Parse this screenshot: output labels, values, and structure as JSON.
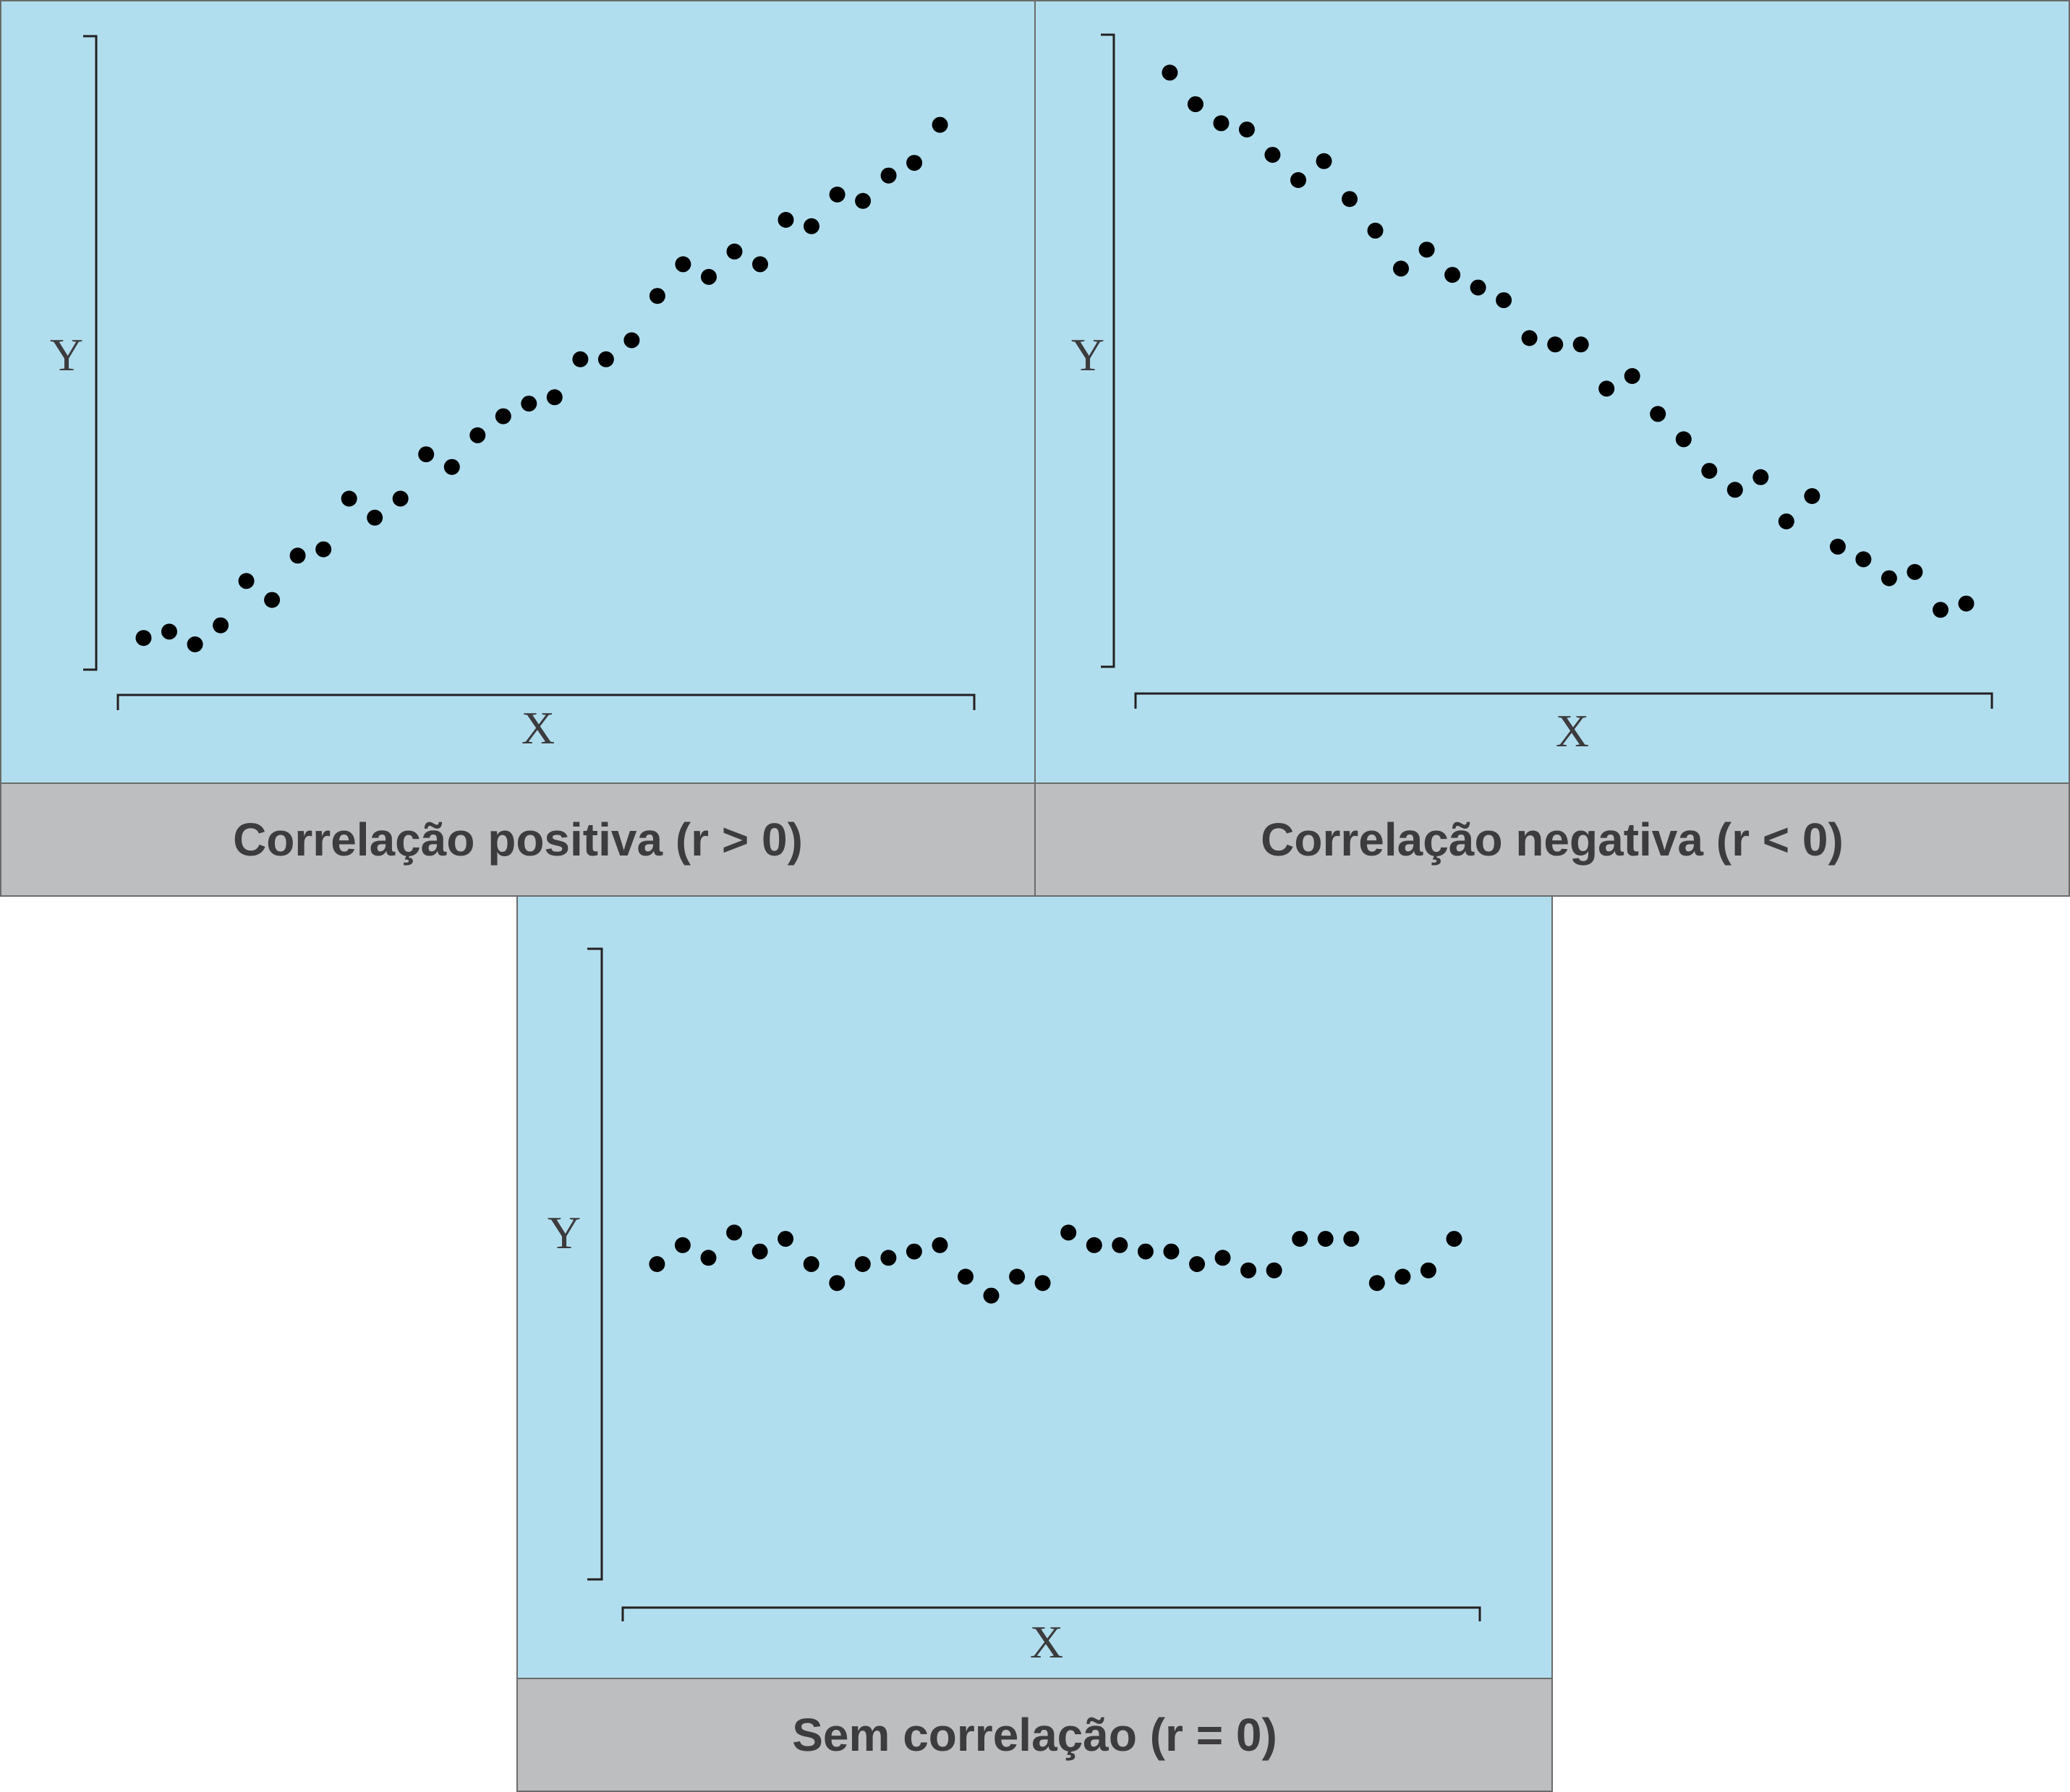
{
  "colors": {
    "plot_background": "#b1deee",
    "caption_background": "#bdbec0",
    "border": "#6b6b6b",
    "axis": "#231f20",
    "point": "#000000",
    "text": "#3c3b3d"
  },
  "chart_data": [
    {
      "type": "scatter",
      "caption": "Correlação positiva (r > 0)",
      "xlabel": "X",
      "ylabel": "Y",
      "grid": false,
      "ticks": false,
      "xlim": [
        0,
        100
      ],
      "ylim": [
        0,
        100
      ],
      "points": [
        {
          "x": 3,
          "y": 5
        },
        {
          "x": 6,
          "y": 6
        },
        {
          "x": 9,
          "y": 4
        },
        {
          "x": 12,
          "y": 7
        },
        {
          "x": 15,
          "y": 14
        },
        {
          "x": 18,
          "y": 11
        },
        {
          "x": 21,
          "y": 18
        },
        {
          "x": 24,
          "y": 19
        },
        {
          "x": 27,
          "y": 27
        },
        {
          "x": 30,
          "y": 24
        },
        {
          "x": 33,
          "y": 27
        },
        {
          "x": 36,
          "y": 34
        },
        {
          "x": 39,
          "y": 32
        },
        {
          "x": 42,
          "y": 37
        },
        {
          "x": 45,
          "y": 40
        },
        {
          "x": 48,
          "y": 42
        },
        {
          "x": 51,
          "y": 43
        },
        {
          "x": 54,
          "y": 49
        },
        {
          "x": 57,
          "y": 49
        },
        {
          "x": 60,
          "y": 52
        },
        {
          "x": 63,
          "y": 59
        },
        {
          "x": 66,
          "y": 64
        },
        {
          "x": 69,
          "y": 62
        },
        {
          "x": 72,
          "y": 66
        },
        {
          "x": 75,
          "y": 64
        },
        {
          "x": 78,
          "y": 71
        },
        {
          "x": 81,
          "y": 70
        },
        {
          "x": 84,
          "y": 75
        },
        {
          "x": 87,
          "y": 74
        },
        {
          "x": 90,
          "y": 78
        },
        {
          "x": 93,
          "y": 80
        },
        {
          "x": 96,
          "y": 86
        }
      ]
    },
    {
      "type": "scatter",
      "caption": "Correlação negativa (r < 0)",
      "xlabel": "X",
      "ylabel": "Y",
      "grid": false,
      "ticks": false,
      "xlim": [
        0,
        100
      ],
      "ylim": [
        0,
        100
      ],
      "points": [
        {
          "x": 4,
          "y": 94
        },
        {
          "x": 7,
          "y": 89
        },
        {
          "x": 10,
          "y": 86
        },
        {
          "x": 13,
          "y": 85
        },
        {
          "x": 16,
          "y": 81
        },
        {
          "x": 19,
          "y": 77
        },
        {
          "x": 22,
          "y": 80
        },
        {
          "x": 25,
          "y": 74
        },
        {
          "x": 28,
          "y": 69
        },
        {
          "x": 31,
          "y": 63
        },
        {
          "x": 34,
          "y": 66
        },
        {
          "x": 37,
          "y": 62
        },
        {
          "x": 40,
          "y": 60
        },
        {
          "x": 43,
          "y": 58
        },
        {
          "x": 46,
          "y": 52
        },
        {
          "x": 49,
          "y": 51
        },
        {
          "x": 52,
          "y": 51
        },
        {
          "x": 55,
          "y": 44
        },
        {
          "x": 58,
          "y": 46
        },
        {
          "x": 61,
          "y": 40
        },
        {
          "x": 64,
          "y": 36
        },
        {
          "x": 67,
          "y": 31
        },
        {
          "x": 70,
          "y": 28
        },
        {
          "x": 73,
          "y": 30
        },
        {
          "x": 76,
          "y": 23
        },
        {
          "x": 79,
          "y": 27
        },
        {
          "x": 82,
          "y": 19
        },
        {
          "x": 85,
          "y": 17
        },
        {
          "x": 88,
          "y": 14
        },
        {
          "x": 91,
          "y": 15
        },
        {
          "x": 94,
          "y": 9
        },
        {
          "x": 97,
          "y": 10
        }
      ]
    },
    {
      "type": "scatter",
      "caption": "Sem correlação (r = 0)",
      "xlabel": "X",
      "ylabel": "Y",
      "grid": false,
      "ticks": false,
      "xlim": [
        0,
        100
      ],
      "ylim": [
        0,
        100
      ],
      "points": [
        {
          "x": 4,
          "y": 50
        },
        {
          "x": 7,
          "y": 53
        },
        {
          "x": 10,
          "y": 51
        },
        {
          "x": 13,
          "y": 55
        },
        {
          "x": 16,
          "y": 52
        },
        {
          "x": 19,
          "y": 54
        },
        {
          "x": 22,
          "y": 50
        },
        {
          "x": 25,
          "y": 47
        },
        {
          "x": 28,
          "y": 50
        },
        {
          "x": 31,
          "y": 51
        },
        {
          "x": 34,
          "y": 52
        },
        {
          "x": 37,
          "y": 53
        },
        {
          "x": 40,
          "y": 48
        },
        {
          "x": 43,
          "y": 45
        },
        {
          "x": 46,
          "y": 48
        },
        {
          "x": 49,
          "y": 47
        },
        {
          "x": 52,
          "y": 55
        },
        {
          "x": 55,
          "y": 53
        },
        {
          "x": 58,
          "y": 53
        },
        {
          "x": 61,
          "y": 52
        },
        {
          "x": 64,
          "y": 52
        },
        {
          "x": 67,
          "y": 50
        },
        {
          "x": 70,
          "y": 51
        },
        {
          "x": 73,
          "y": 49
        },
        {
          "x": 76,
          "y": 49
        },
        {
          "x": 79,
          "y": 54
        },
        {
          "x": 82,
          "y": 54
        },
        {
          "x": 85,
          "y": 54
        },
        {
          "x": 88,
          "y": 47
        },
        {
          "x": 91,
          "y": 48
        },
        {
          "x": 94,
          "y": 49
        },
        {
          "x": 97,
          "y": 54
        }
      ]
    }
  ]
}
